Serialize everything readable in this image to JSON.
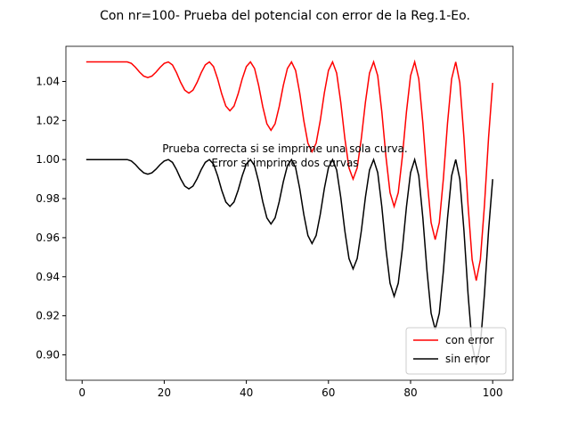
{
  "chart_data": {
    "type": "line",
    "title": "Con nr=100- Prueba del potencial con error de la Reg.1-Eo.",
    "annotations": [
      "Prueba correcta si se imprime una sola curva.",
      "Error si imprime dos curvas"
    ],
    "x": [
      1,
      2,
      3,
      4,
      5,
      6,
      7,
      8,
      9,
      10,
      11,
      12,
      13,
      14,
      15,
      16,
      17,
      18,
      19,
      20,
      21,
      22,
      23,
      24,
      25,
      26,
      27,
      28,
      29,
      30,
      31,
      32,
      33,
      34,
      35,
      36,
      37,
      38,
      39,
      40,
      41,
      42,
      43,
      44,
      45,
      46,
      47,
      48,
      49,
      50,
      51,
      52,
      53,
      54,
      55,
      56,
      57,
      58,
      59,
      60,
      61,
      62,
      63,
      64,
      65,
      66,
      67,
      68,
      69,
      70,
      71,
      72,
      73,
      74,
      75,
      76,
      77,
      78,
      79,
      80,
      81,
      82,
      83,
      84,
      85,
      86,
      87,
      88,
      89,
      90,
      91,
      92,
      93,
      94,
      95,
      96,
      97,
      98,
      99,
      100
    ],
    "series": [
      {
        "name": "con error",
        "color": "#ff0000",
        "values": [
          1.05,
          1.05,
          1.05,
          1.05,
          1.05,
          1.05,
          1.05,
          1.05,
          1.05,
          1.05,
          1.05,
          1.04924,
          1.04724,
          1.04476,
          1.04276,
          1.042,
          1.04276,
          1.04476,
          1.04724,
          1.04924,
          1.05,
          1.04847,
          1.04447,
          1.03953,
          1.03553,
          1.034,
          1.03553,
          1.03953,
          1.04447,
          1.04847,
          1.05,
          1.04761,
          1.04136,
          1.03364,
          1.02739,
          1.025,
          1.02739,
          1.03364,
          1.04136,
          1.04761,
          1.05,
          1.04666,
          1.03791,
          1.02709,
          1.01834,
          1.015,
          1.01834,
          1.02709,
          1.03791,
          1.04666,
          1.05,
          1.04561,
          1.03411,
          1.01989,
          1.00839,
          1.004,
          1.00839,
          1.01989,
          1.03411,
          1.04561,
          1.05,
          1.04427,
          1.02927,
          1.01073,
          0.99573,
          0.99,
          0.99573,
          1.01073,
          1.02927,
          1.04427,
          1.05,
          1.04293,
          1.02443,
          1.00157,
          0.98307,
          0.976,
          0.98307,
          1.00157,
          1.02443,
          1.04293,
          1.05,
          1.04131,
          1.01856,
          0.99044,
          0.96769,
          0.959,
          0.96769,
          0.99044,
          1.01856,
          1.04131,
          1.05,
          1.0393,
          1.0113,
          0.9767,
          0.9487,
          0.938,
          0.9487,
          0.9767,
          1.0113,
          1.0393
        ]
      },
      {
        "name": "sin error",
        "color": "#000000",
        "values": [
          1,
          1,
          1,
          1,
          1,
          1,
          1,
          1,
          1,
          1,
          1,
          0.99928,
          0.99741,
          0.99509,
          0.99322,
          0.9925,
          0.99322,
          0.99509,
          0.99741,
          0.99928,
          1,
          0.99857,
          0.99482,
          0.99018,
          0.98643,
          0.985,
          0.98643,
          0.99018,
          0.99482,
          0.99857,
          1,
          0.99771,
          0.99171,
          0.98429,
          0.97829,
          0.976,
          0.97829,
          0.98429,
          0.99171,
          0.99771,
          1,
          0.99685,
          0.9886,
          0.9784,
          0.97015,
          0.967,
          0.97015,
          0.9784,
          0.9886,
          0.99685,
          1,
          0.99589,
          0.98514,
          0.97186,
          0.96111,
          0.957,
          0.96111,
          0.97186,
          0.98514,
          0.99589,
          1,
          0.99465,
          0.98065,
          0.96335,
          0.94935,
          0.944,
          0.94935,
          0.96335,
          0.98065,
          0.99465,
          1,
          0.99332,
          0.97582,
          0.95419,
          0.93669,
          0.93,
          0.93669,
          0.95419,
          0.97582,
          0.99332,
          1,
          0.99169,
          0.96994,
          0.94306,
          0.92131,
          0.913,
          0.92131,
          0.94306,
          0.96994,
          0.99169,
          1,
          0.98997,
          0.96372,
          0.93128,
          0.90503,
          0.895,
          0.90503,
          0.93128,
          0.96372,
          0.98997
        ]
      }
    ],
    "xlim": [
      -3.95,
      104.95
    ],
    "xticks": [
      0,
      20,
      40,
      60,
      80,
      100
    ],
    "ylim": [
      0.887,
      1.058
    ],
    "yticks": [
      {
        "value": 0.9,
        "label": "0.90"
      },
      0.92,
      0.94,
      0.96,
      0.98,
      {
        "value": 1,
        "label": "1.00"
      },
      1.02,
      1.04
    ],
    "legend": "lower right"
  }
}
